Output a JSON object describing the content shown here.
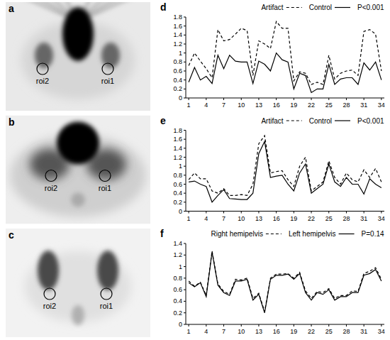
{
  "images": [
    {
      "panel": "a",
      "labels": [
        "roi2",
        "roi1"
      ]
    },
    {
      "panel": "b",
      "labels": [
        "roi2",
        "roi1"
      ]
    },
    {
      "panel": "c",
      "labels": [
        "roi2",
        "roi1"
      ]
    }
  ],
  "chart_data": [
    {
      "type": "line",
      "panel": "d",
      "annotation": "P<0.001",
      "legend": "top",
      "grid": false,
      "x": [
        1,
        2,
        3,
        4,
        5,
        6,
        7,
        8,
        9,
        10,
        11,
        12,
        13,
        14,
        15,
        16,
        17,
        18,
        19,
        20,
        21,
        22,
        23,
        24,
        25,
        26,
        27,
        28,
        29,
        30,
        31,
        32,
        33,
        34
      ],
      "xlim": [
        0.5,
        34.5
      ],
      "xticks": [
        1,
        4,
        7,
        10,
        13,
        16,
        19,
        22,
        25,
        28,
        31,
        34
      ],
      "ylim": [
        0,
        1.8
      ],
      "yticks": [
        0,
        0.2,
        0.4,
        0.6,
        0.8,
        1,
        1.2,
        1.4,
        1.6,
        1.8
      ],
      "series": [
        {
          "name": "Artifact",
          "color": "#000000",
          "line_style": "dashed",
          "values": [
            0.72,
            1.0,
            0.82,
            0.65,
            0.45,
            1.52,
            1.27,
            1.3,
            1.42,
            1.55,
            1.5,
            0.5,
            1.27,
            1.2,
            1.1,
            1.7,
            1.55,
            1.55,
            0.38,
            0.58,
            0.55,
            0.3,
            0.35,
            0.3,
            0.95,
            0.42,
            0.55,
            0.6,
            0.62,
            0.5,
            1.48,
            1.52,
            1.42,
            0.6
          ]
        },
        {
          "name": "Control",
          "color": "#000000",
          "line_style": "solid",
          "values": [
            0.35,
            0.68,
            0.4,
            0.48,
            0.32,
            0.95,
            0.65,
            0.95,
            0.82,
            0.8,
            0.8,
            0.32,
            0.82,
            0.75,
            0.6,
            1.0,
            0.85,
            0.8,
            0.2,
            0.55,
            0.5,
            0.12,
            0.2,
            0.2,
            0.75,
            0.3,
            0.42,
            0.45,
            0.45,
            0.3,
            0.78,
            0.62,
            0.8,
            0.4
          ]
        }
      ]
    },
    {
      "type": "line",
      "panel": "e",
      "annotation": "P<0.001",
      "legend": "top",
      "grid": false,
      "x": [
        1,
        2,
        3,
        4,
        5,
        6,
        7,
        8,
        9,
        10,
        11,
        12,
        13,
        14,
        15,
        16,
        17,
        18,
        19,
        20,
        21,
        22,
        23,
        24,
        25,
        26,
        27,
        28,
        29,
        30,
        31,
        32,
        33,
        34
      ],
      "xlim": [
        0.5,
        34.5
      ],
      "xticks": [
        1,
        4,
        7,
        10,
        13,
        16,
        19,
        22,
        25,
        28,
        31,
        34
      ],
      "ylim": [
        0,
        1.8
      ],
      "yticks": [
        0,
        0.2,
        0.4,
        0.6,
        0.8,
        1,
        1.2,
        1.4,
        1.6,
        1.8
      ],
      "series": [
        {
          "name": "Artifact",
          "color": "#000000",
          "line_style": "dashed",
          "values": [
            0.7,
            0.85,
            0.72,
            0.72,
            0.45,
            0.4,
            0.5,
            0.35,
            0.35,
            0.37,
            0.35,
            0.6,
            1.5,
            1.68,
            0.85,
            0.88,
            0.9,
            0.7,
            0.55,
            1.0,
            1.2,
            0.45,
            0.55,
            0.65,
            1.12,
            0.75,
            0.6,
            0.85,
            0.7,
            0.65,
            0.92,
            0.75,
            0.95,
            0.65
          ]
        },
        {
          "name": "Control",
          "color": "#000000",
          "line_style": "solid",
          "values": [
            0.65,
            0.67,
            0.6,
            0.55,
            0.2,
            0.35,
            0.48,
            0.28,
            0.27,
            0.26,
            0.26,
            0.4,
            1.28,
            1.55,
            0.75,
            0.78,
            0.8,
            0.6,
            0.45,
            0.85,
            1.05,
            0.4,
            0.5,
            0.6,
            1.05,
            0.65,
            0.55,
            0.75,
            0.6,
            0.6,
            0.38,
            0.72,
            0.6,
            0.52
          ]
        }
      ]
    },
    {
      "type": "line",
      "panel": "f",
      "annotation": "P=0.14",
      "legend": "top",
      "grid": false,
      "x": [
        1,
        2,
        3,
        4,
        5,
        6,
        7,
        8,
        9,
        10,
        11,
        12,
        13,
        14,
        15,
        16,
        17,
        18,
        19,
        20,
        21,
        22,
        23,
        24,
        25,
        26,
        27,
        28,
        29,
        30,
        31,
        32,
        33,
        34
      ],
      "xlim": [
        0.5,
        34.5
      ],
      "xticks": [
        1,
        4,
        7,
        10,
        13,
        16,
        19,
        22,
        25,
        28,
        31,
        34
      ],
      "ylim": [
        0,
        1.4
      ],
      "yticks": [
        0,
        0.2,
        0.4,
        0.6,
        0.8,
        1,
        1.2,
        1.4
      ],
      "series": [
        {
          "name": "Right hemipelvis",
          "color": "#000000",
          "line_style": "dashed",
          "values": [
            0.75,
            0.66,
            0.73,
            0.5,
            1.27,
            0.7,
            0.57,
            0.52,
            0.78,
            0.77,
            0.8,
            0.45,
            0.54,
            0.22,
            0.8,
            0.87,
            0.87,
            0.88,
            0.8,
            0.9,
            0.58,
            0.45,
            0.57,
            0.55,
            0.62,
            0.45,
            0.5,
            0.5,
            0.58,
            0.57,
            0.88,
            0.92,
            0.98,
            0.78
          ]
        },
        {
          "name": "Left hemipelvis",
          "color": "#000000",
          "line_style": "solid",
          "values": [
            0.72,
            0.65,
            0.72,
            0.48,
            1.25,
            0.68,
            0.55,
            0.5,
            0.75,
            0.75,
            0.78,
            0.42,
            0.52,
            0.2,
            0.78,
            0.85,
            0.85,
            0.87,
            0.78,
            0.88,
            0.55,
            0.42,
            0.55,
            0.52,
            0.6,
            0.42,
            0.48,
            0.48,
            0.55,
            0.55,
            0.85,
            0.88,
            0.95,
            0.75
          ]
        }
      ]
    }
  ]
}
